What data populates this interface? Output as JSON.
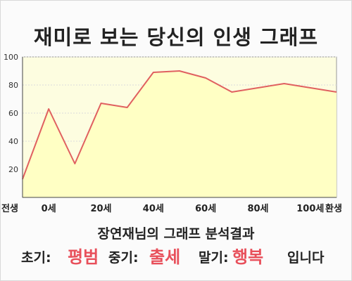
{
  "title": "재미로 보는 당신의 인생 그래프",
  "chart_data": {
    "type": "area",
    "x_labels": [
      "전생",
      "0세",
      "20세",
      "40세",
      "60세",
      "80세",
      "100세",
      "환생"
    ],
    "y_ticks": [
      20,
      40,
      60,
      80,
      100
    ],
    "ylim": [
      0,
      100
    ],
    "values": [
      13,
      63,
      24,
      67,
      64,
      89,
      90,
      85,
      75,
      78,
      81,
      78,
      75
    ],
    "line_color": "#e06060",
    "fill_color": "#ffffc4",
    "plot_bg": "#fdfde0",
    "grid": true
  },
  "summary": {
    "text": "장연재님의 그래프 분석결과",
    "early_label": "초기:",
    "early_value": "평범",
    "mid_label": "중기:",
    "mid_value": "출세",
    "late_label": "말기:",
    "late_value": "행복",
    "ending": "입니다",
    "highlight_color": "#e8505b"
  }
}
